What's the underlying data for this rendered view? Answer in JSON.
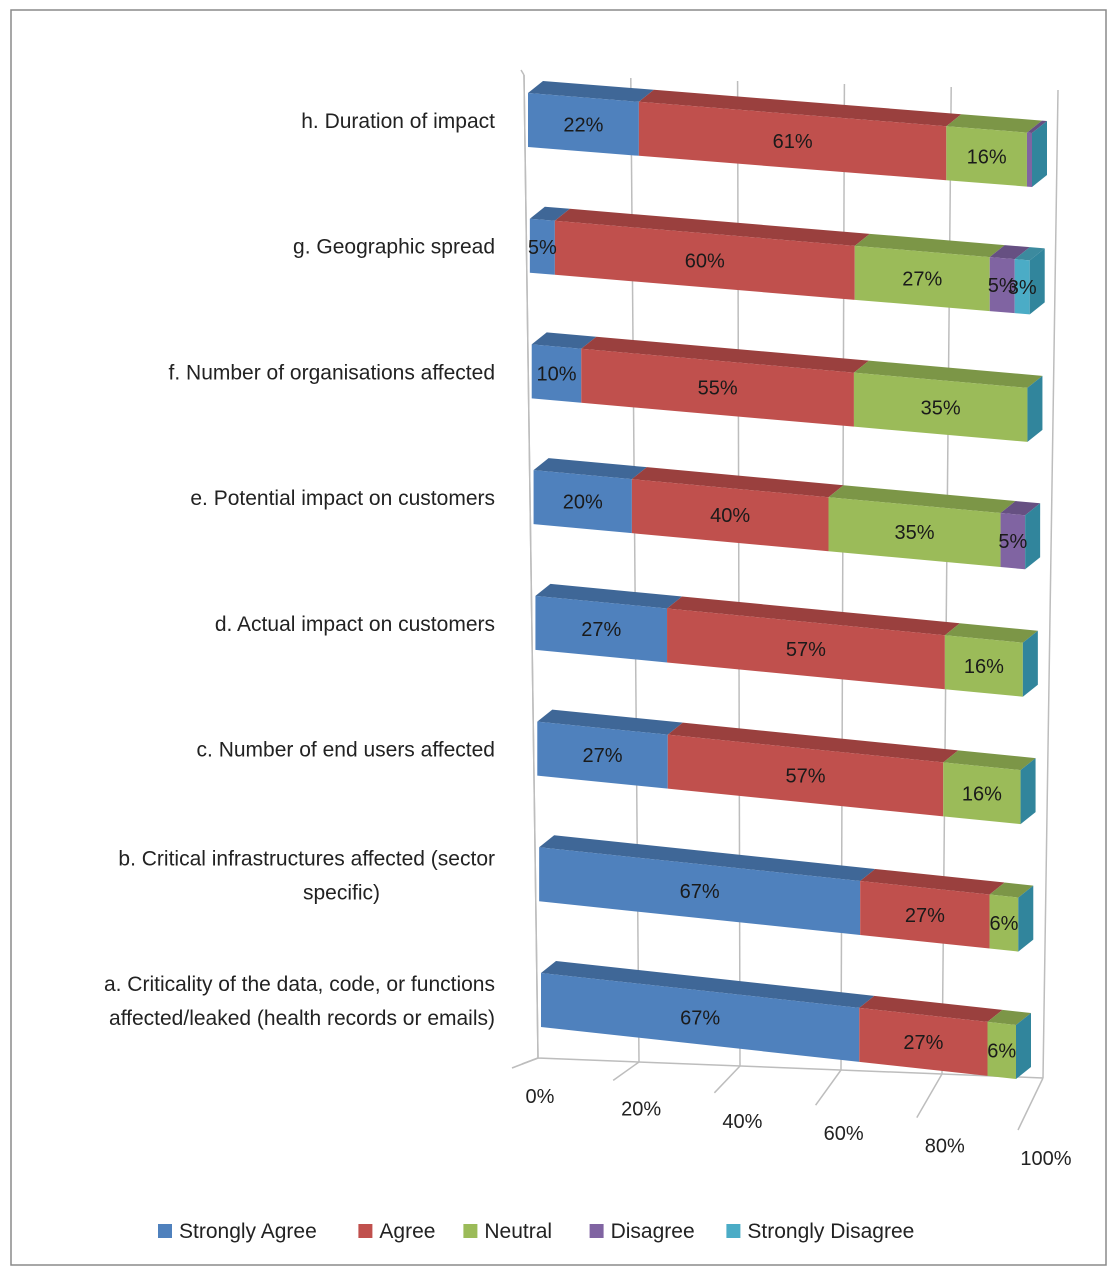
{
  "chart_data": {
    "type": "bar",
    "orientation": "horizontal",
    "stacked": "100%",
    "three_d": true,
    "categories": [
      "a. Criticality  of the data, code, or functions affected/leaked (health records or emails)",
      "b. Critical infrastructures affected (sector specific)",
      "c. Number of end users affected",
      "d. Actual impact on customers",
      "e. Potential impact on customers",
      "f. Number of organisations affected",
      "g. Geographic spread",
      "h. Duration of impact"
    ],
    "category_lines": [
      [
        "a. Criticality  of the data, code, or functions",
        "affected/leaked (health records or emails)"
      ],
      [
        "b. Critical infrastructures affected (sector",
        "specific)"
      ],
      [
        "c. Number of end users affected"
      ],
      [
        "d. Actual impact on customers"
      ],
      [
        "e. Potential impact on customers"
      ],
      [
        "f. Number of organisations affected"
      ],
      [
        "g. Geographic spread"
      ],
      [
        "h. Duration of impact"
      ]
    ],
    "series": [
      {
        "name": "Strongly Agree",
        "color": "#4f81bd",
        "values": [
          67,
          67,
          27,
          27,
          20,
          10,
          5,
          22
        ]
      },
      {
        "name": "Agree",
        "color": "#c0504d",
        "values": [
          27,
          27,
          57,
          57,
          40,
          55,
          60,
          61
        ]
      },
      {
        "name": "Neutral",
        "color": "#9bbb59",
        "values": [
          6,
          6,
          16,
          16,
          35,
          35,
          27,
          16
        ]
      },
      {
        "name": "Disagree",
        "color": "#8064a2",
        "values": [
          0,
          0,
          0,
          0,
          5,
          0,
          5,
          1
        ]
      },
      {
        "name": "Strongly Disagree",
        "color": "#4bacc6",
        "values": [
          0,
          0,
          0,
          0,
          0,
          0,
          3,
          0
        ]
      }
    ],
    "data_labels": [
      [
        "67%",
        "27%",
        "6%",
        "",
        ""
      ],
      [
        "67%",
        "27%",
        "6%",
        "",
        ""
      ],
      [
        "27%",
        "57%",
        "16%",
        "",
        ""
      ],
      [
        "27%",
        "57%",
        "16%",
        "",
        ""
      ],
      [
        "20%",
        "40%",
        "35%",
        "5%",
        ""
      ],
      [
        "10%",
        "55%",
        "35%",
        "",
        ""
      ],
      [
        "5%",
        "60%",
        "27%",
        "5%",
        "3%"
      ],
      [
        "22%",
        "61%",
        "16%",
        "",
        ""
      ]
    ],
    "x_ticks": [
      "0%",
      "20%",
      "40%",
      "60%",
      "80%",
      "100%"
    ],
    "xlim": [
      0,
      100
    ],
    "grid": true,
    "legend_position": "bottom"
  }
}
